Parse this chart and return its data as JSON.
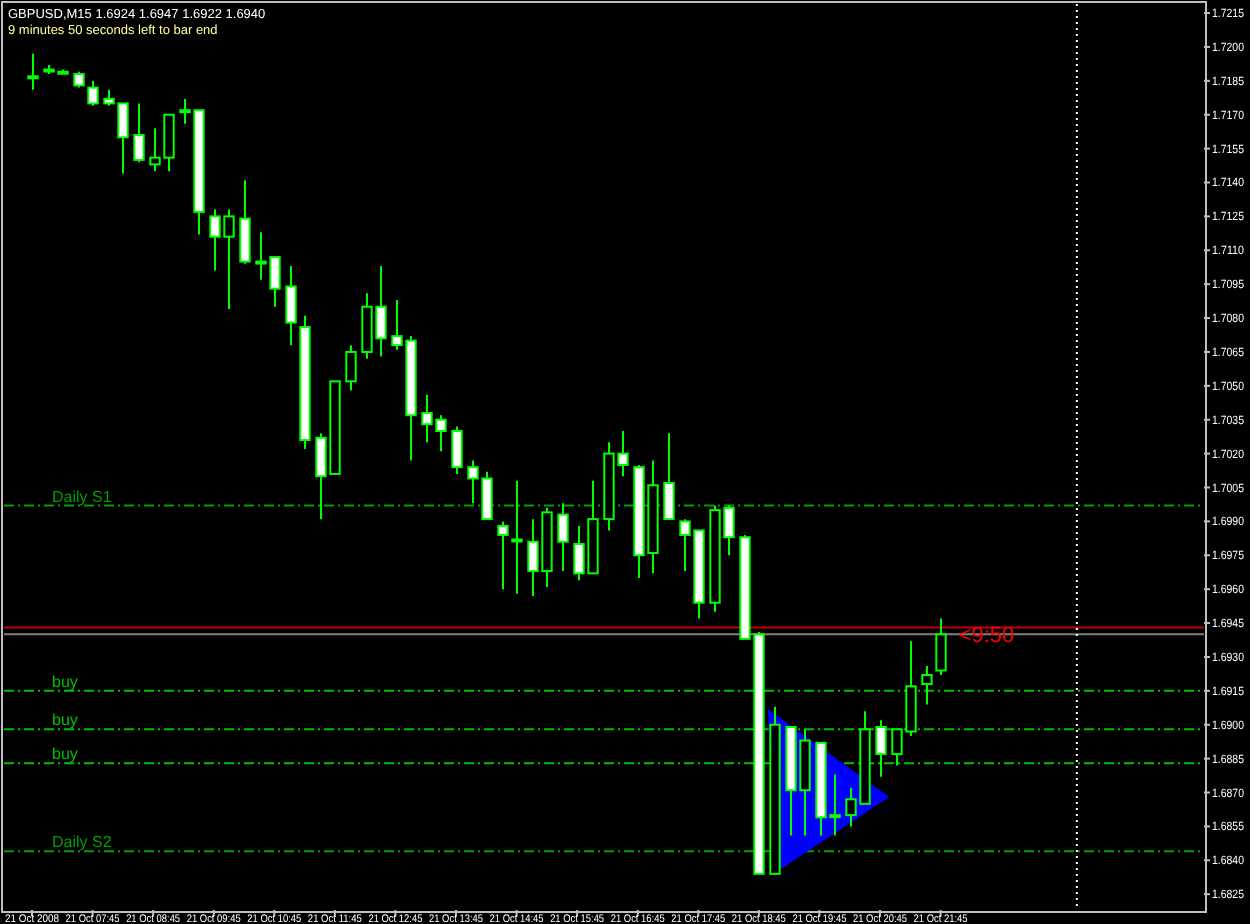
{
  "chart_data": {
    "type": "candlestick",
    "title": "GBPUSD,M15  1.6924 1.6947 1.6922 1.6940",
    "subtitle": "9 minutes 50 seconds left to bar end",
    "categories": [
      "21 Oct 2008",
      null,
      null,
      null,
      "21 Oct 07:45",
      null,
      null,
      null,
      "21 Oct 08:45",
      null,
      null,
      null,
      "21 Oct 09:45",
      null,
      null,
      null,
      "21 Oct 10:45",
      null,
      null,
      null,
      "21 Oct 11:45",
      null,
      null,
      null,
      "21 Oct 12:45",
      null,
      null,
      null,
      "21 Oct 13:45",
      null,
      null,
      null,
      "21 Oct 14:45",
      null,
      null,
      null,
      "21 Oct 15:45",
      null,
      null,
      null,
      "21 Oct 16:45",
      null,
      null,
      null,
      "21 Oct 17:45",
      null,
      null,
      null,
      "21 Oct 18:45",
      null,
      null,
      null,
      "21 Oct 19:45",
      null,
      null,
      null,
      "21 Oct 20:45",
      null,
      null,
      null,
      "21 Oct 21:45",
      null,
      null,
      null,
      null,
      null,
      null,
      null,
      null,
      null,
      null,
      null,
      null,
      null,
      null,
      null,
      null,
      null
    ],
    "ohlc": [
      [
        1.7187,
        1.7197,
        1.7181,
        1.7187
      ],
      [
        1.719,
        1.7192,
        1.7188,
        1.719
      ],
      [
        1.7189,
        1.719,
        1.7188,
        1.7189
      ],
      [
        1.7188,
        1.7189,
        1.7182,
        1.7183
      ],
      [
        1.7182,
        1.7185,
        1.7174,
        1.7175
      ],
      [
        1.7177,
        1.7181,
        1.7174,
        1.7175
      ],
      [
        1.7175,
        1.7175,
        1.7144,
        1.716
      ],
      [
        1.7161,
        1.7175,
        1.7149,
        1.715
      ],
      [
        1.7148,
        1.7164,
        1.7145,
        1.7151
      ],
      [
        1.7151,
        1.717,
        1.7145,
        1.717
      ],
      [
        1.7172,
        1.7177,
        1.7166,
        1.7172
      ],
      [
        1.7172,
        1.7172,
        1.7117,
        1.7127
      ],
      [
        1.7125,
        1.7128,
        1.7101,
        1.7116
      ],
      [
        1.7116,
        1.7128,
        1.7084,
        1.7125
      ],
      [
        1.7124,
        1.7141,
        1.7104,
        1.7105
      ],
      [
        1.7105,
        1.7118,
        1.7097,
        1.7105
      ],
      [
        1.7107,
        1.7107,
        1.7085,
        1.7093
      ],
      [
        1.7094,
        1.7103,
        1.7068,
        1.7078
      ],
      [
        1.7076,
        1.7081,
        1.7022,
        1.7026
      ],
      [
        1.7027,
        1.7029,
        1.6991,
        1.701
      ],
      [
        1.7011,
        1.7052,
        1.7011,
        1.7052
      ],
      [
        1.7052,
        1.7068,
        1.7048,
        1.7065
      ],
      [
        1.7065,
        1.7091,
        1.7062,
        1.7085
      ],
      [
        1.7085,
        1.7103,
        1.7063,
        1.7071
      ],
      [
        1.7072,
        1.7088,
        1.7066,
        1.7068
      ],
      [
        1.707,
        1.7072,
        1.7017,
        1.7037
      ],
      [
        1.7038,
        1.7046,
        1.7025,
        1.7033
      ],
      [
        1.7035,
        1.7037,
        1.7021,
        1.703
      ],
      [
        1.703,
        1.7032,
        1.7011,
        1.7014
      ],
      [
        1.7014,
        1.7017,
        1.6998,
        1.7009
      ],
      [
        1.7009,
        1.7012,
        1.6991,
        1.6991
      ],
      [
        1.6988,
        1.699,
        1.696,
        1.6984
      ],
      [
        1.6982,
        1.7008,
        1.6958,
        1.6982
      ],
      [
        1.6981,
        1.6991,
        1.6957,
        1.6968
      ],
      [
        1.6968,
        1.6996,
        1.6961,
        1.6994
      ],
      [
        1.6993,
        1.6998,
        1.6968,
        1.6981
      ],
      [
        1.698,
        1.6988,
        1.6964,
        1.6967
      ],
      [
        1.6967,
        1.7008,
        1.6967,
        1.6991
      ],
      [
        1.6991,
        1.7025,
        1.6986,
        1.702
      ],
      [
        1.702,
        1.703,
        1.701,
        1.7015
      ],
      [
        1.7014,
        1.7015,
        1.6965,
        1.6975
      ],
      [
        1.6976,
        1.7017,
        1.6967,
        1.7006
      ],
      [
        1.7007,
        1.7029,
        1.6991,
        1.6991
      ],
      [
        1.699,
        1.6991,
        1.6968,
        1.6984
      ],
      [
        1.6986,
        1.6986,
        1.6947,
        1.6954
      ],
      [
        1.6954,
        1.6997,
        1.695,
        1.6995
      ],
      [
        1.6996,
        1.6997,
        1.6975,
        1.6983
      ],
      [
        1.6983,
        1.6984,
        1.6938,
        1.6938
      ],
      [
        1.694,
        1.6941,
        1.6834,
        1.6834
      ],
      [
        1.6834,
        1.6908,
        1.6834,
        1.69
      ],
      [
        1.6899,
        1.6899,
        1.6851,
        1.6871
      ],
      [
        1.6871,
        1.6898,
        1.6851,
        1.6893
      ],
      [
        1.6892,
        1.6892,
        1.6851,
        1.6859
      ],
      [
        1.686,
        1.6878,
        1.6851,
        1.686
      ],
      [
        1.686,
        1.6872,
        1.6855,
        1.6867
      ],
      [
        1.6865,
        1.6906,
        1.6865,
        1.6898
      ],
      [
        1.6899,
        1.6902,
        1.6877,
        1.6887
      ],
      [
        1.6887,
        1.6898,
        1.6882,
        1.6898
      ],
      [
        1.6897,
        1.6937,
        1.6895,
        1.6917
      ],
      [
        1.6918,
        1.6926,
        1.6909,
        1.6922
      ],
      [
        1.6924,
        1.6947,
        1.6922,
        1.694
      ],
      null,
      null,
      null,
      null,
      null,
      null,
      null,
      null,
      null,
      null,
      null,
      null,
      null,
      null,
      null,
      null,
      null
    ],
    "color": "#00ff00",
    "ylim": [
      1.6818,
      1.7219
    ],
    "yticks": [
      1.7215,
      {
        "value": 1.72,
        "label": "1.7200"
      },
      1.7185,
      {
        "value": 1.717,
        "label": "1.7170"
      },
      1.7155,
      {
        "value": 1.714,
        "label": "1.7140"
      },
      1.7125,
      {
        "value": 1.711,
        "label": "1.7110"
      },
      1.7095,
      {
        "value": 1.708,
        "label": "1.7080"
      },
      1.7065,
      {
        "value": 1.705,
        "label": "1.7050"
      },
      1.7035,
      {
        "value": 1.702,
        "label": "1.7020"
      },
      1.7005,
      {
        "value": 1.699,
        "label": "1.6990"
      },
      1.6975,
      {
        "value": 1.696,
        "label": "1.6960"
      },
      1.6945,
      {
        "value": 1.693,
        "label": "1.6930"
      },
      1.6915,
      {
        "value": 1.69,
        "label": "1.6900"
      },
      1.6885,
      {
        "value": 1.687,
        "label": "1.6870"
      },
      1.6855,
      {
        "value": 1.684,
        "label": "1.6840"
      },
      1.6825
    ],
    "ref_lines": [
      {
        "axis": "y",
        "value": 1.6997,
        "label": "Daily S1",
        "color": "#00a000",
        "line_style": "dashed"
      },
      {
        "axis": "y",
        "value": 1.6844,
        "label": "Daily S2",
        "color": "#00a000",
        "line_style": "dashed"
      },
      {
        "axis": "y",
        "value": 1.6915,
        "label": "buy",
        "color": "#00c000",
        "line_style": "dashed"
      },
      {
        "axis": "y",
        "value": 1.6898,
        "label": "buy",
        "color": "#00c000",
        "line_style": "dashed"
      },
      {
        "axis": "y",
        "value": 1.6883,
        "label": "buy",
        "color": "#00c000",
        "line_style": "dashed"
      },
      {
        "axis": "y",
        "value": 1.6943,
        "color": "#c00000",
        "line_style": "solid"
      },
      {
        "axis": "y",
        "value": 1.694,
        "color": "#808080",
        "line_style": "solid"
      }
    ],
    "annotations": [
      {
        "text": "<9:50",
        "x": "21 Oct 21:45",
        "y": 1.694
      }
    ],
    "grid": false
  }
}
